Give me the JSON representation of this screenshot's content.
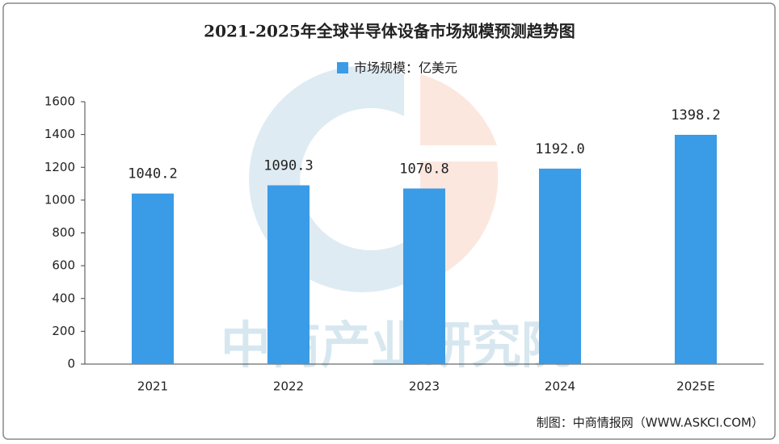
{
  "chart_data": {
    "type": "bar",
    "title": "2021-2025年全球半导体设备市场规模预测趋势图",
    "categories": [
      "2021",
      "2022",
      "2023",
      "2024",
      "2025E"
    ],
    "series": [
      {
        "name": "市场规模：亿美元",
        "color": "#3a9be6",
        "values": [
          1040.2,
          1090.3,
          1070.8,
          1192.0,
          1398.2
        ],
        "value_labels": [
          "1040.2",
          "1090.3",
          "1070.8",
          "1192.0",
          "1398.2"
        ]
      }
    ],
    "ylim": [
      0,
      1600
    ],
    "yticks": [
      0,
      200,
      400,
      600,
      800,
      1000,
      1200,
      1400,
      1600
    ],
    "grid": false,
    "watermark": "中商产业研究院",
    "source": "制图：中商情报网（WWW.ASKCI.COM）"
  }
}
